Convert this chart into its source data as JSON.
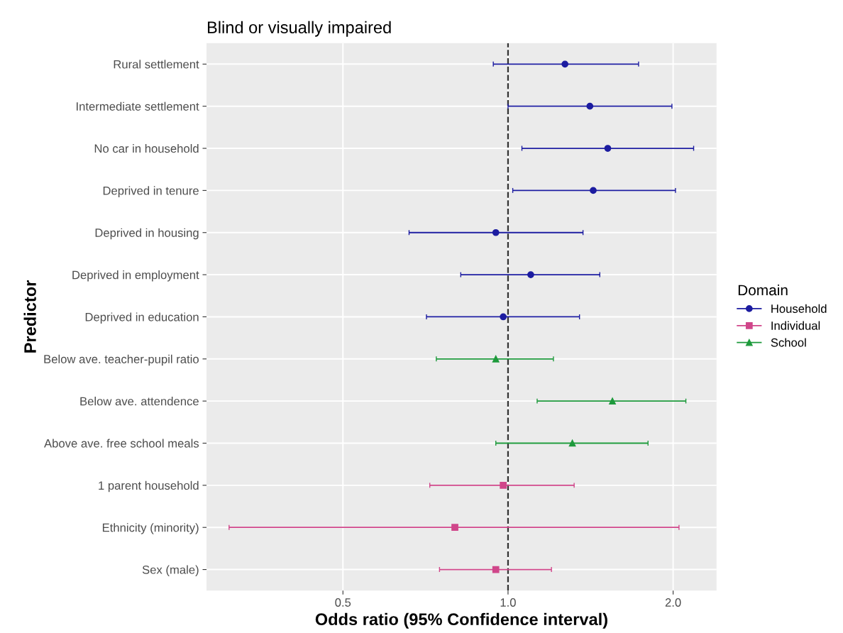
{
  "chart_data": {
    "type": "scatter",
    "title": "Blind or visually impaired",
    "xlabel": "Odds ratio (95% Confidence interval)",
    "ylabel": "Predictor",
    "legend_title": "Domain",
    "legend": "right",
    "orientation": "horizontal",
    "log": "x",
    "grid": true,
    "categories": [
      "Rural settlement",
      "Intermediate settlement",
      "No car in household",
      "Deprived in tenure",
      "Deprived in housing",
      "Deprived in employment",
      "Deprived in education",
      "Below ave. teacher-pupil ratio",
      "Below ave. attendence",
      "Above ave. free school meals",
      "1 parent household",
      "Ethnicity (minority)",
      "Sex (male)"
    ],
    "xlim": [
      0.282,
      2.4
    ],
    "xticks": [
      0.5,
      {
        "value": 1.0,
        "label": "1.0"
      },
      {
        "value": 2.0,
        "label": "2.0"
      }
    ],
    "ref_lines": [
      {
        "axis": "x",
        "value": 1.0,
        "color": "#333333",
        "line_style": "dashed"
      }
    ],
    "series": [
      {
        "name": "Household",
        "color": "#1c1ca0",
        "marker": "circle",
        "values": [
          1.27,
          1.41,
          1.52,
          1.43,
          0.95,
          1.1,
          0.98,
          null,
          null,
          null,
          null,
          null,
          null
        ],
        "errors": [
          [
            0.94,
            1.73
          ],
          [
            1.0,
            1.99
          ],
          [
            1.06,
            2.18
          ],
          [
            1.02,
            2.02
          ],
          [
            0.66,
            1.37
          ],
          [
            0.82,
            1.47
          ],
          [
            0.71,
            1.35
          ],
          null,
          null,
          null,
          null,
          null,
          null
        ]
      },
      {
        "name": "Individual",
        "color": "#d0468a",
        "marker": "square",
        "values": [
          null,
          null,
          null,
          null,
          null,
          null,
          null,
          null,
          null,
          null,
          0.98,
          0.8,
          0.95
        ],
        "errors": [
          null,
          null,
          null,
          null,
          null,
          null,
          null,
          null,
          null,
          null,
          [
            0.72,
            1.32
          ],
          [
            0.31,
            2.05
          ],
          [
            0.75,
            1.2
          ]
        ]
      },
      {
        "name": "School",
        "color": "#1e9a3c",
        "marker": "triangle",
        "values": [
          null,
          null,
          null,
          null,
          null,
          null,
          null,
          0.95,
          1.55,
          1.31,
          null,
          null,
          null
        ],
        "errors": [
          null,
          null,
          null,
          null,
          null,
          null,
          null,
          [
            0.74,
            1.21
          ],
          [
            1.13,
            2.11
          ],
          [
            0.95,
            1.8
          ],
          null,
          null,
          null
        ]
      }
    ]
  }
}
